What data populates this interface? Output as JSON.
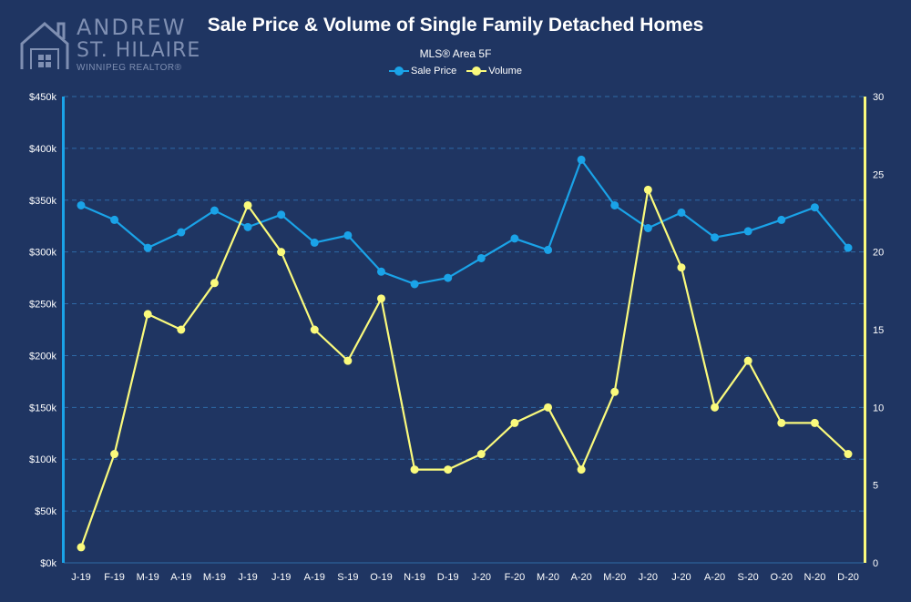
{
  "logo": {
    "line1": "ANDREW",
    "line2": "ST. HILAIRE",
    "line3": "WINNIPEG REALTOR®"
  },
  "colors": {
    "background": "#1f3562",
    "sale_price": "#1aa3e8",
    "volume": "#fafa7c",
    "grid": "#2f6aa7"
  },
  "chart_data": {
    "type": "line",
    "title": "Sale Price & Volume of Single Family Detached Homes",
    "subtitle": "MLS® Area 5F",
    "legend_position": "top",
    "grid": true,
    "categories": [
      "J-19",
      "F-19",
      "M-19",
      "A-19",
      "M-19",
      "J-19",
      "J-19",
      "A-19",
      "S-19",
      "O-19",
      "N-19",
      "D-19",
      "J-20",
      "F-20",
      "M-20",
      "A-20",
      "M-20",
      "J-20",
      "J-20",
      "A-20",
      "S-20",
      "O-20",
      "N-20",
      "D-20"
    ],
    "y_left": {
      "range": [
        0,
        450000
      ],
      "ticks": [
        0,
        50000,
        100000,
        150000,
        200000,
        250000,
        300000,
        350000,
        400000,
        450000
      ],
      "tick_labels": [
        "$0k",
        "$50k",
        "$100k",
        "$150k",
        "$200k",
        "$250k",
        "$300k",
        "$350k",
        "$400k",
        "$450k"
      ]
    },
    "y_right": {
      "range": [
        0,
        30
      ],
      "ticks": [
        0,
        5,
        10,
        15,
        20,
        25,
        30
      ],
      "tick_labels": [
        "0",
        "5",
        "10",
        "15",
        "20",
        "25",
        "30"
      ]
    },
    "series": [
      {
        "name": "Sale Price",
        "axis": "left",
        "values": [
          345000,
          331000,
          304000,
          319000,
          340000,
          324000,
          336000,
          309000,
          316000,
          281000,
          269000,
          275000,
          294000,
          313000,
          302000,
          389000,
          345000,
          323000,
          338000,
          314000,
          320000,
          331000,
          343000,
          304000
        ]
      },
      {
        "name": "Volume",
        "axis": "right",
        "values": [
          1,
          7,
          16,
          15,
          18,
          23,
          20,
          15,
          13,
          17,
          6,
          6,
          7,
          9,
          10,
          6,
          11,
          24,
          19,
          10,
          13,
          9,
          9,
          7
        ]
      }
    ]
  }
}
